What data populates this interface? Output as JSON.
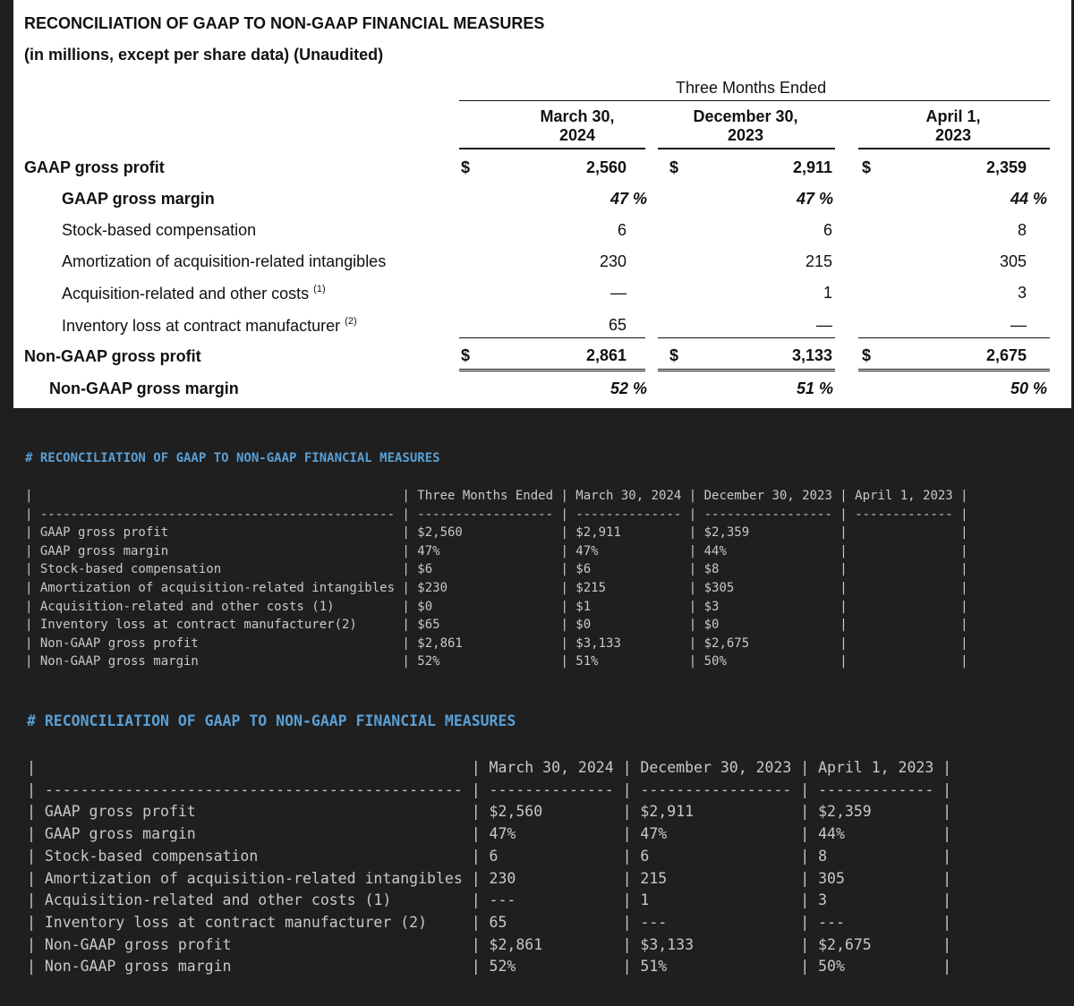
{
  "financial_table": {
    "title": "RECONCILIATION OF GAAP TO NON-GAAP FINANCIAL MEASURES",
    "subtitle": "(in millions, except per share data) (Unaudited)",
    "period_label": "Three Months Ended",
    "columns": [
      {
        "line1": "March 30,",
        "line2": "2024"
      },
      {
        "line1": "December 30,",
        "line2": "2023"
      },
      {
        "line1": "April 1,",
        "line2": "2023"
      }
    ],
    "currency_symbol": "$",
    "rows": [
      {
        "label": "GAAP gross profit",
        "values": [
          "2,560",
          "2,911",
          "2,359"
        ]
      },
      {
        "label": "GAAP gross margin",
        "values": [
          "47 %",
          "47 %",
          "44 %"
        ]
      },
      {
        "label": "Stock-based compensation",
        "values": [
          "6",
          "6",
          "8"
        ]
      },
      {
        "label": "Amortization of acquisition-related intangibles",
        "values": [
          "230",
          "215",
          "305"
        ]
      },
      {
        "label": "Acquisition-related and other costs",
        "note": "(1)",
        "values": [
          "—",
          "1",
          "3"
        ]
      },
      {
        "label": "Inventory loss at contract manufacturer",
        "note": "(2)",
        "values": [
          "65",
          "—",
          "—"
        ]
      },
      {
        "label": "Non-GAAP gross profit",
        "values": [
          "2,861",
          "3,133",
          "2,675"
        ]
      },
      {
        "label": "Non-GAAP gross margin",
        "values": [
          "52 %",
          "51 %",
          "50 %"
        ]
      }
    ]
  },
  "markdown_1": {
    "heading": "# RECONCILIATION OF GAAP TO NON-GAAP FINANCIAL MEASURES",
    "table_text": "|                                                 | Three Months Ended | March 30, 2024 | December 30, 2023 | April 1, 2023 |\n| ----------------------------------------------- | ------------------ | -------------- | ----------------- | ------------- |\n| GAAP gross profit                               | $2,560             | $2,911         | $2,359            |               |\n| GAAP gross margin                               | 47%                | 47%            | 44%               |               |\n| Stock-based compensation                        | $6                 | $6             | $8                |               |\n| Amortization of acquisition-related intangibles | $230               | $215           | $305              |               |\n| Acquisition-related and other costs (1)         | $0                 | $1             | $3                |               |\n| Inventory loss at contract manufacturer(2)      | $65                | $0             | $0                |               |\n| Non-GAAP gross profit                           | $2,861             | $3,133         | $2,675            |               |\n| Non-GAAP gross margin                           | 52%                | 51%            | 50%               |               |"
  },
  "markdown_2": {
    "heading": "# RECONCILIATION OF GAAP TO NON-GAAP FINANCIAL MEASURES",
    "table_text": "|                                                 | March 30, 2024 | December 30, 2023 | April 1, 2023 |\n| ----------------------------------------------- | -------------- | ----------------- | ------------- |\n| GAAP gross profit                               | $2,560         | $2,911            | $2,359        |\n| GAAP gross margin                               | 47%            | 47%               | 44%           |\n| Stock-based compensation                        | 6              | 6                 | 8             |\n| Amortization of acquisition-related intangibles | 230            | 215               | 305           |\n| Acquisition-related and other costs (1)         | ---            | 1                 | 3             |\n| Inventory loss at contract manufacturer (2)     | 65             | ---               | ---           |\n| Non-GAAP gross profit                           | $2,861         | $3,133            | $2,675        |\n| Non-GAAP gross margin                           | 52%            | 51%               | 50%           |"
  }
}
